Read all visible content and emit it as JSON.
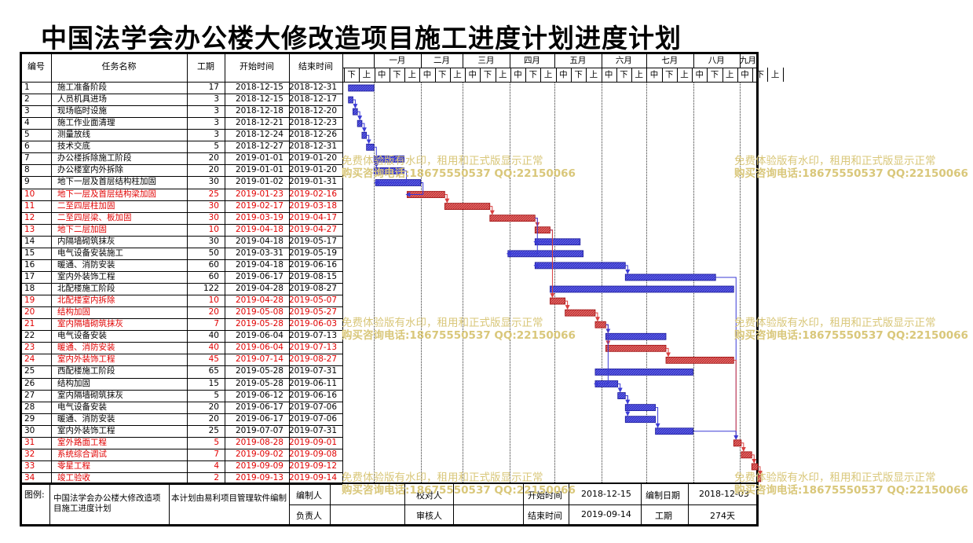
{
  "title": "中国法学会办公楼大修改造项目施工进度计划进度计划",
  "headers": {
    "no": "编号",
    "name": "任务名称",
    "dur": "工期",
    "start": "开始时间",
    "end": "结束时间"
  },
  "months": [
    "一月",
    "二月",
    "三月",
    "四月",
    "五月",
    "六月",
    "七月",
    "八月",
    "九月"
  ],
  "xun": [
    "下",
    "上",
    "中",
    "下",
    "上",
    "中",
    "下",
    "上",
    "中",
    "下",
    "上",
    "中",
    "下",
    "上",
    "中",
    "下",
    "上",
    "中",
    "下",
    "上",
    "中",
    "下",
    "上",
    "中",
    "下",
    "上",
    "中",
    "下",
    "上"
  ],
  "colors": {
    "blue": "#3b3bd6",
    "red": "#d94040",
    "blue_fill": "#5a5ae8",
    "red_fill": "#e86060"
  },
  "tasks": [
    {
      "no": "1",
      "name": "施工准备阶段",
      "dur": "17",
      "start": "2018-12-15",
      "end": "2018-12-31",
      "critical": false
    },
    {
      "no": "2",
      "name": "人员机具进场",
      "dur": "3",
      "start": "2018-12-15",
      "end": "2018-12-17",
      "critical": false
    },
    {
      "no": "3",
      "name": "现场临时设施",
      "dur": "3",
      "start": "2018-12-18",
      "end": "2018-12-20",
      "critical": false
    },
    {
      "no": "4",
      "name": "施工作业面清理",
      "dur": "3",
      "start": "2018-12-21",
      "end": "2018-12-23",
      "critical": false
    },
    {
      "no": "5",
      "name": "测量放线",
      "dur": "3",
      "start": "2018-12-24",
      "end": "2018-12-26",
      "critical": false
    },
    {
      "no": "6",
      "name": "技术交底",
      "dur": "5",
      "start": "2018-12-27",
      "end": "2018-12-31",
      "critical": false
    },
    {
      "no": "7",
      "name": "办公楼拆除施工阶段",
      "dur": "20",
      "start": "2019-01-01",
      "end": "2019-01-20",
      "critical": false
    },
    {
      "no": "8",
      "name": "办公楼室内外拆除",
      "dur": "20",
      "start": "2019-01-01",
      "end": "2019-01-20",
      "critical": false
    },
    {
      "no": "9",
      "name": "地下一层及首层结构柱加固",
      "dur": "30",
      "start": "2019-01-02",
      "end": "2019-01-31",
      "critical": false
    },
    {
      "no": "10",
      "name": "地下一层及首层结构梁加固",
      "dur": "25",
      "start": "2019-01-23",
      "end": "2019-02-16",
      "critical": true
    },
    {
      "no": "11",
      "name": "二至四层柱加固",
      "dur": "30",
      "start": "2019-02-17",
      "end": "2019-03-18",
      "critical": true
    },
    {
      "no": "12",
      "name": "二至四层梁、板加固",
      "dur": "30",
      "start": "2019-03-19",
      "end": "2019-04-17",
      "critical": true
    },
    {
      "no": "13",
      "name": "地下二层加固",
      "dur": "10",
      "start": "2019-04-18",
      "end": "2019-04-27",
      "critical": true
    },
    {
      "no": "14",
      "name": "内隔墙砌筑抹灰",
      "dur": "30",
      "start": "2019-04-18",
      "end": "2019-05-17",
      "critical": false
    },
    {
      "no": "15",
      "name": "电气设备安装施工",
      "dur": "50",
      "start": "2019-03-31",
      "end": "2019-05-19",
      "critical": false
    },
    {
      "no": "16",
      "name": "暖通、消防安装",
      "dur": "60",
      "start": "2019-04-18",
      "end": "2019-06-16",
      "critical": false
    },
    {
      "no": "17",
      "name": "室内外装饰工程",
      "dur": "60",
      "start": "2019-06-17",
      "end": "2019-08-15",
      "critical": false
    },
    {
      "no": "18",
      "name": "北配楼施工阶段",
      "dur": "122",
      "start": "2019-04-28",
      "end": "2019-08-27",
      "critical": false
    },
    {
      "no": "19",
      "name": "北配楼室内拆除",
      "dur": "10",
      "start": "2019-04-28",
      "end": "2019-05-07",
      "critical": true
    },
    {
      "no": "20",
      "name": "结构加固",
      "dur": "20",
      "start": "2019-05-08",
      "end": "2019-05-27",
      "critical": true
    },
    {
      "no": "21",
      "name": "室内隔墙砌筑抹灰",
      "dur": "7",
      "start": "2019-05-28",
      "end": "2019-06-03",
      "critical": true
    },
    {
      "no": "22",
      "name": "电气设备安装",
      "dur": "40",
      "start": "2019-06-04",
      "end": "2019-07-13",
      "critical": false
    },
    {
      "no": "23",
      "name": "暖通、消防安装",
      "dur": "40",
      "start": "2019-06-04",
      "end": "2019-07-13",
      "critical": true
    },
    {
      "no": "24",
      "name": "室内外装饰工程",
      "dur": "45",
      "start": "2019-07-14",
      "end": "2019-08-27",
      "critical": true
    },
    {
      "no": "25",
      "name": "西配楼施工阶段",
      "dur": "65",
      "start": "2019-05-28",
      "end": "2019-07-31",
      "critical": false
    },
    {
      "no": "26",
      "name": "结构加固",
      "dur": "15",
      "start": "2019-05-28",
      "end": "2019-06-11",
      "critical": false
    },
    {
      "no": "27",
      "name": "室内隔墙砌筑抹灰",
      "dur": "5",
      "start": "2019-06-12",
      "end": "2019-06-16",
      "critical": false
    },
    {
      "no": "28",
      "name": "电气设备安装",
      "dur": "20",
      "start": "2019-06-17",
      "end": "2019-07-06",
      "critical": false
    },
    {
      "no": "29",
      "name": "暖通、消防安装",
      "dur": "20",
      "start": "2019-06-17",
      "end": "2019-07-06",
      "critical": false
    },
    {
      "no": "30",
      "name": "室内外装饰工程",
      "dur": "25",
      "start": "2019-07-07",
      "end": "2019-07-31",
      "critical": false
    },
    {
      "no": "31",
      "name": "室外路面工程",
      "dur": "5",
      "start": "2019-08-28",
      "end": "2019-09-01",
      "critical": true
    },
    {
      "no": "32",
      "name": "系统综合调试",
      "dur": "7",
      "start": "2019-09-02",
      "end": "2019-09-08",
      "critical": true
    },
    {
      "no": "33",
      "name": "零星工程",
      "dur": "4",
      "start": "2019-09-09",
      "end": "2019-09-12",
      "critical": true
    },
    {
      "no": "34",
      "name": "竣工验收",
      "dur": "2",
      "start": "2019-09-13",
      "end": "2019-09-14",
      "critical": true
    }
  ],
  "footer": {
    "legend_label": "图例:",
    "project_name": "中国法学会办公楼大修改造项目施工进度计划",
    "software_note": "本计划由易利项目管理软件编制",
    "compiler_label": "编制人",
    "proofreader_label": "校对人",
    "start_label": "开始时间",
    "start_value": "2018-12-15",
    "compile_date_label": "编制日期",
    "compile_date_value": "2018-12-03",
    "owner_label": "负责人",
    "reviewer_label": "审核人",
    "end_label": "结束时间",
    "end_value": "2019-09-14",
    "duration_label": "工期",
    "duration_value": "274天"
  },
  "watermark": {
    "line1": "免费体验版有水印，租用和正式版显示正常",
    "line2": "购买咨询电话:18675550537 QQ:22150066"
  }
}
